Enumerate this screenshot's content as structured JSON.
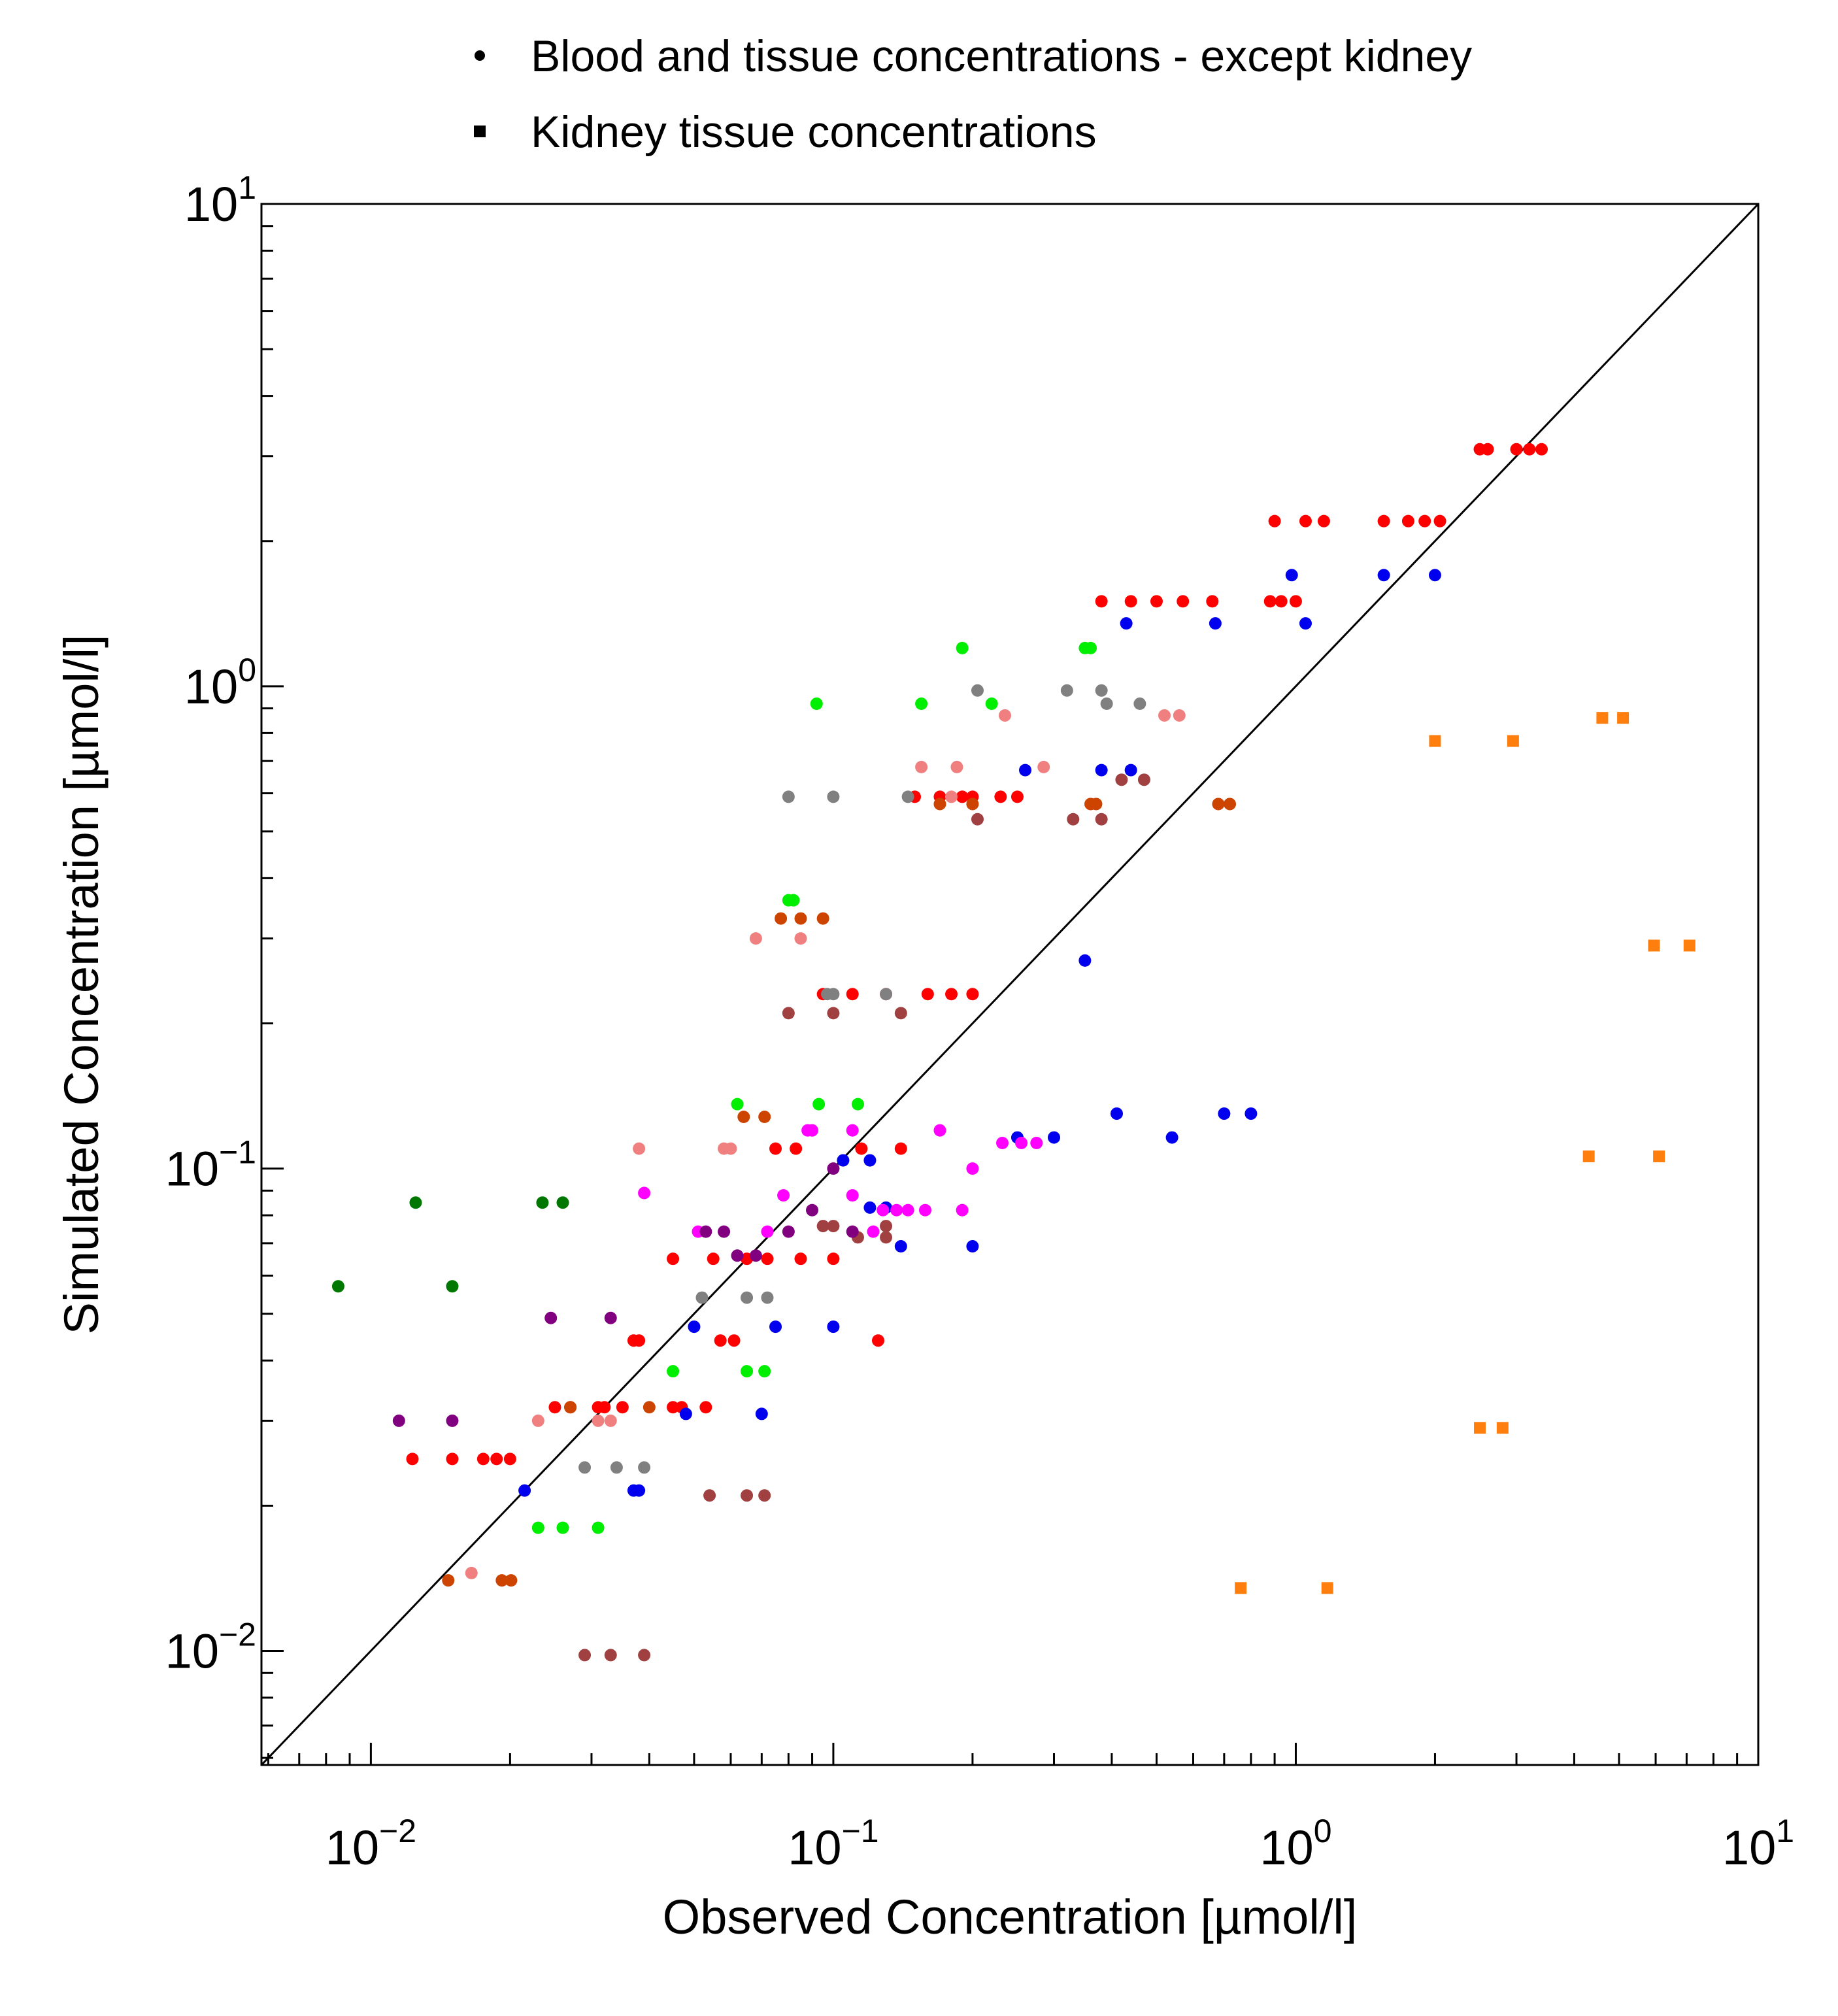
{
  "chart_data": {
    "type": "scatter",
    "title": "",
    "xlabel": "Observed Concentration [µmol/l]",
    "ylabel": "Simulated Concentration [µmol/l]",
    "xscale": "log",
    "yscale": "log",
    "xlim": [
      0.0058,
      10
    ],
    "ylim": [
      0.0058,
      10
    ],
    "grid": false,
    "legend_position": "top",
    "legend": [
      {
        "label": "Blood and tissue concentrations - except kidney",
        "marker": "circle"
      },
      {
        "label": "Kidney tissue concentrations",
        "marker": "square"
      }
    ],
    "x_ticks": [
      {
        "value": 0.01,
        "base": "10",
        "exp": "−2"
      },
      {
        "value": 0.1,
        "base": "10",
        "exp": "−1"
      },
      {
        "value": 1,
        "base": "10",
        "exp": "0"
      },
      {
        "value": 10,
        "base": "10",
        "exp": "1"
      }
    ],
    "y_ticks": [
      {
        "value": 0.01,
        "base": "10",
        "exp": "−2"
      },
      {
        "value": 0.1,
        "base": "10",
        "exp": "−1"
      },
      {
        "value": 1,
        "base": "10",
        "exp": "0"
      },
      {
        "value": 10,
        "base": "10",
        "exp": "1"
      }
    ],
    "reference_line": "y = x",
    "series": [
      {
        "color": "#ff0000",
        "marker": "circle",
        "points": [
          [
            2.5,
            3.1
          ],
          [
            2.6,
            3.1
          ],
          [
            3.0,
            3.1
          ],
          [
            3.2,
            3.1
          ],
          [
            3.4,
            3.1
          ],
          [
            0.9,
            2.2
          ],
          [
            1.05,
            2.2
          ],
          [
            1.15,
            2.2
          ],
          [
            1.55,
            2.2
          ],
          [
            1.75,
            2.2
          ],
          [
            1.9,
            2.2
          ],
          [
            2.05,
            2.2
          ],
          [
            0.38,
            1.5
          ],
          [
            0.44,
            1.5
          ],
          [
            0.5,
            1.5
          ],
          [
            0.57,
            1.5
          ],
          [
            0.66,
            1.5
          ],
          [
            0.88,
            1.5
          ],
          [
            0.93,
            1.5
          ],
          [
            1.0,
            1.5
          ],
          [
            0.15,
            0.59
          ],
          [
            0.17,
            0.59
          ],
          [
            0.19,
            0.59
          ],
          [
            0.2,
            0.59
          ],
          [
            0.23,
            0.59
          ],
          [
            0.25,
            0.59
          ],
          [
            0.095,
            0.23
          ],
          [
            0.11,
            0.23
          ],
          [
            0.13,
            0.23
          ],
          [
            0.16,
            0.23
          ],
          [
            0.18,
            0.23
          ],
          [
            0.2,
            0.23
          ],
          [
            0.075,
            0.11
          ],
          [
            0.083,
            0.11
          ],
          [
            0.115,
            0.11
          ],
          [
            0.14,
            0.11
          ],
          [
            0.045,
            0.065
          ],
          [
            0.055,
            0.065
          ],
          [
            0.065,
            0.065
          ],
          [
            0.072,
            0.065
          ],
          [
            0.085,
            0.065
          ],
          [
            0.1,
            0.065
          ],
          [
            0.037,
            0.044
          ],
          [
            0.038,
            0.044
          ],
          [
            0.057,
            0.044
          ],
          [
            0.061,
            0.044
          ],
          [
            0.125,
            0.044
          ],
          [
            0.025,
            0.032
          ],
          [
            0.027,
            0.032
          ],
          [
            0.031,
            0.032
          ],
          [
            0.032,
            0.032
          ],
          [
            0.035,
            0.032
          ],
          [
            0.045,
            0.032
          ],
          [
            0.047,
            0.032
          ],
          [
            0.053,
            0.032
          ],
          [
            0.0123,
            0.025
          ],
          [
            0.015,
            0.025
          ],
          [
            0.0175,
            0.025
          ],
          [
            0.0187,
            0.025
          ],
          [
            0.02,
            0.025
          ]
        ]
      },
      {
        "color": "#0000ee",
        "marker": "circle",
        "points": [
          [
            0.98,
            1.7
          ],
          [
            1.55,
            1.7
          ],
          [
            2.0,
            1.7
          ],
          [
            0.43,
            1.35
          ],
          [
            0.67,
            1.35
          ],
          [
            1.05,
            1.35
          ],
          [
            0.26,
            0.67
          ],
          [
            0.38,
            0.67
          ],
          [
            0.44,
            0.67
          ],
          [
            0.35,
            0.27
          ],
          [
            0.41,
            0.13
          ],
          [
            0.7,
            0.13
          ],
          [
            0.8,
            0.13
          ],
          [
            0.25,
            0.116
          ],
          [
            0.3,
            0.116
          ],
          [
            0.54,
            0.116
          ],
          [
            0.105,
            0.104
          ],
          [
            0.12,
            0.104
          ],
          [
            0.12,
            0.083
          ],
          [
            0.13,
            0.083
          ],
          [
            0.14,
            0.069
          ],
          [
            0.2,
            0.069
          ],
          [
            0.05,
            0.047
          ],
          [
            0.075,
            0.047
          ],
          [
            0.1,
            0.047
          ],
          [
            0.048,
            0.031
          ],
          [
            0.07,
            0.031
          ],
          [
            0.0215,
            0.0215
          ],
          [
            0.037,
            0.0215
          ],
          [
            0.038,
            0.0215
          ]
        ]
      },
      {
        "color": "#00ee00",
        "marker": "circle",
        "points": [
          [
            0.19,
            1.2
          ],
          [
            0.35,
            1.2
          ],
          [
            0.36,
            1.2
          ],
          [
            0.092,
            0.92
          ],
          [
            0.155,
            0.92
          ],
          [
            0.22,
            0.92
          ],
          [
            0.08,
            0.36
          ],
          [
            0.082,
            0.36
          ],
          [
            0.062,
            0.136
          ],
          [
            0.093,
            0.136
          ],
          [
            0.113,
            0.136
          ],
          [
            0.045,
            0.038
          ],
          [
            0.065,
            0.038
          ],
          [
            0.071,
            0.038
          ],
          [
            0.023,
            0.018
          ],
          [
            0.026,
            0.018
          ],
          [
            0.031,
            0.018
          ]
        ]
      },
      {
        "color": "#808080",
        "marker": "circle",
        "points": [
          [
            0.205,
            0.98
          ],
          [
            0.32,
            0.98
          ],
          [
            0.38,
            0.98
          ],
          [
            0.39,
            0.92
          ],
          [
            0.46,
            0.92
          ],
          [
            0.08,
            0.59
          ],
          [
            0.1,
            0.59
          ],
          [
            0.145,
            0.59
          ],
          [
            0.097,
            0.23
          ],
          [
            0.1,
            0.23
          ],
          [
            0.13,
            0.23
          ],
          [
            0.052,
            0.054
          ],
          [
            0.065,
            0.054
          ],
          [
            0.072,
            0.054
          ],
          [
            0.029,
            0.024
          ],
          [
            0.034,
            0.024
          ],
          [
            0.039,
            0.024
          ]
        ]
      },
      {
        "color": "#f08080",
        "marker": "circle",
        "points": [
          [
            0.235,
            0.87
          ],
          [
            0.52,
            0.87
          ],
          [
            0.56,
            0.87
          ],
          [
            0.155,
            0.68
          ],
          [
            0.185,
            0.68
          ],
          [
            0.285,
            0.68
          ],
          [
            0.18,
            0.59
          ],
          [
            0.068,
            0.3
          ],
          [
            0.085,
            0.3
          ],
          [
            0.038,
            0.11
          ],
          [
            0.058,
            0.11
          ],
          [
            0.06,
            0.11
          ],
          [
            0.023,
            0.03
          ],
          [
            0.031,
            0.03
          ],
          [
            0.033,
            0.03
          ],
          [
            0.0165,
            0.0145
          ]
        ]
      },
      {
        "color": "#cc4400",
        "marker": "circle",
        "points": [
          [
            0.17,
            0.57
          ],
          [
            0.2,
            0.57
          ],
          [
            0.36,
            0.57
          ],
          [
            0.37,
            0.57
          ],
          [
            0.68,
            0.57
          ],
          [
            0.72,
            0.57
          ],
          [
            0.077,
            0.33
          ],
          [
            0.085,
            0.33
          ],
          [
            0.095,
            0.33
          ],
          [
            0.064,
            0.128
          ],
          [
            0.071,
            0.128
          ],
          [
            0.027,
            0.032
          ],
          [
            0.04,
            0.032
          ],
          [
            0.0147,
            0.014
          ],
          [
            0.0192,
            0.014
          ],
          [
            0.0201,
            0.014
          ]
        ]
      },
      {
        "color": "#a04040",
        "marker": "circle",
        "points": [
          [
            0.42,
            0.64
          ],
          [
            0.47,
            0.64
          ],
          [
            0.205,
            0.53
          ],
          [
            0.33,
            0.53
          ],
          [
            0.38,
            0.53
          ],
          [
            0.08,
            0.21
          ],
          [
            0.1,
            0.21
          ],
          [
            0.14,
            0.21
          ],
          [
            0.095,
            0.076
          ],
          [
            0.1,
            0.076
          ],
          [
            0.13,
            0.076
          ],
          [
            0.113,
            0.072
          ],
          [
            0.13,
            0.072
          ],
          [
            0.054,
            0.021
          ],
          [
            0.065,
            0.021
          ],
          [
            0.071,
            0.021
          ],
          [
            0.029,
            0.0098
          ],
          [
            0.033,
            0.0098
          ],
          [
            0.039,
            0.0098
          ]
        ]
      },
      {
        "color": "#ff00ff",
        "marker": "circle",
        "points": [
          [
            0.078,
            0.088
          ],
          [
            0.11,
            0.088
          ],
          [
            0.17,
            0.12
          ],
          [
            0.2,
            0.1
          ],
          [
            0.232,
            0.113
          ],
          [
            0.255,
            0.113
          ],
          [
            0.275,
            0.113
          ],
          [
            0.088,
            0.12
          ],
          [
            0.09,
            0.12
          ],
          [
            0.11,
            0.12
          ],
          [
            0.039,
            0.089
          ],
          [
            0.051,
            0.074
          ],
          [
            0.072,
            0.074
          ],
          [
            0.122,
            0.074
          ],
          [
            0.128,
            0.082
          ],
          [
            0.137,
            0.082
          ],
          [
            0.145,
            0.082
          ],
          [
            0.158,
            0.082
          ],
          [
            0.19,
            0.082
          ]
        ]
      },
      {
        "color": "#800080",
        "marker": "circle",
        "points": [
          [
            0.053,
            0.074
          ],
          [
            0.058,
            0.074
          ],
          [
            0.08,
            0.074
          ],
          [
            0.09,
            0.082
          ],
          [
            0.062,
            0.066
          ],
          [
            0.068,
            0.066
          ],
          [
            0.1,
            0.1
          ],
          [
            0.11,
            0.074
          ],
          [
            0.0245,
            0.049
          ],
          [
            0.033,
            0.049
          ],
          [
            0.0115,
            0.03
          ],
          [
            0.015,
            0.03
          ]
        ]
      },
      {
        "color": "#007700",
        "marker": "circle",
        "points": [
          [
            0.0085,
            0.057
          ],
          [
            0.015,
            0.057
          ],
          [
            0.0125,
            0.085
          ],
          [
            0.0235,
            0.085
          ],
          [
            0.026,
            0.085
          ]
        ]
      },
      {
        "color": "#ff7f0e",
        "marker": "square",
        "points": [
          [
            2.0,
            0.77
          ],
          [
            2.95,
            0.77
          ],
          [
            4.6,
            0.86
          ],
          [
            5.1,
            0.86
          ],
          [
            5.95,
            0.29
          ],
          [
            7.1,
            0.29
          ],
          [
            4.3,
            0.106
          ],
          [
            6.1,
            0.106
          ],
          [
            2.5,
            0.029
          ],
          [
            2.8,
            0.029
          ],
          [
            0.76,
            0.0135
          ],
          [
            1.17,
            0.0135
          ]
        ]
      }
    ]
  }
}
